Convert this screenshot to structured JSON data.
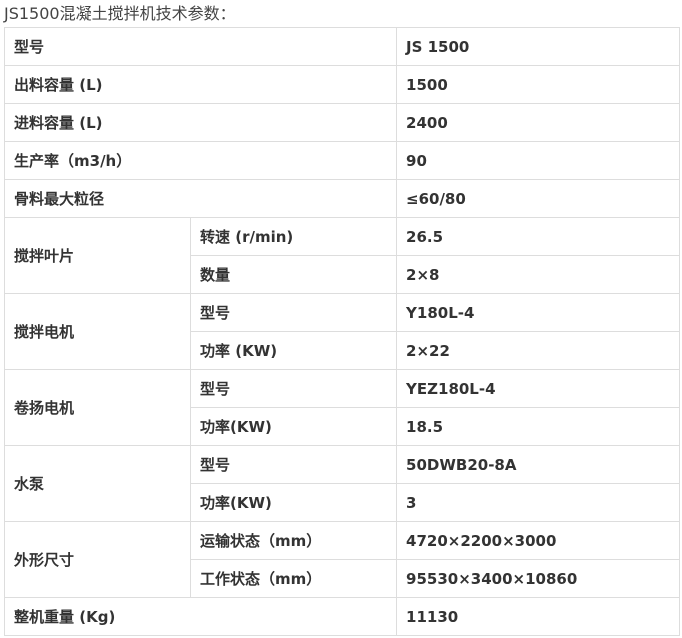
{
  "title": "JS1500混凝土搅拌机技术参数：",
  "rows": [
    {
      "label": "型号",
      "value": "JS 1500"
    },
    {
      "label": "出料容量 (L)",
      "value": "1500"
    },
    {
      "label": "进料容量 (L)",
      "value": "2400"
    },
    {
      "label": "生产率（m3/h）",
      "value": "90"
    },
    {
      "label": "骨料最大粒径",
      "value": "≤60/80"
    }
  ],
  "groups": [
    {
      "label": "搅拌叶片",
      "items": [
        {
          "label": "转速 (r/min)",
          "value": "26.5"
        },
        {
          "label": "数量",
          "value": "2×8"
        }
      ]
    },
    {
      "label": "搅拌电机",
      "items": [
        {
          "label": "型号",
          "value": "Y180L-4"
        },
        {
          "label": "功率 (KW)",
          "value": "2×22"
        }
      ]
    },
    {
      "label": "卷扬电机",
      "items": [
        {
          "label": "型号",
          "value": "YEZ180L-4"
        },
        {
          "label": "功率(KW)",
          "value": "18.5"
        }
      ]
    },
    {
      "label": "水泵",
      "items": [
        {
          "label": "型号",
          "value": "50DWB20-8A"
        },
        {
          "label": "功率(KW)",
          "value": " 3"
        }
      ]
    },
    {
      "label": "外形尺寸",
      "items": [
        {
          "label": "运输状态（mm）",
          "value": "4720×2200×3000"
        },
        {
          "label": "工作状态（mm）",
          "value": "95530×3400×10860"
        }
      ]
    }
  ],
  "last": {
    "label": "整机重量 (Kg)",
    "value": "11130"
  }
}
